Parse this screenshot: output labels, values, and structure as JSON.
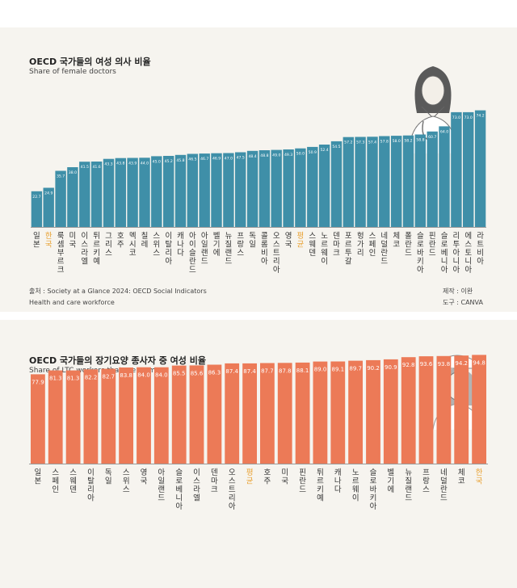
{
  "chart_data": [
    {
      "type": "bar",
      "title": "OECD 국가들의 여성 의사 비율",
      "subtitle": "Share of female doctors",
      "categories": [
        "일본",
        "한국",
        "룩셈부르크",
        "미국",
        "이스라엘",
        "튀르키예",
        "그리스",
        "호주",
        "멕시코",
        "칠레",
        "스위스",
        "이탈리아",
        "캐나다",
        "아이슬란드",
        "아일랜드",
        "벨기에",
        "뉴질랜드",
        "프랑스",
        "독일",
        "콜롬비아",
        "오스트리아",
        "영국",
        "평균",
        "스웨덴",
        "노르웨이",
        "덴마크",
        "포르투갈",
        "헝가리",
        "스페인",
        "네덜란드",
        "체코",
        "폴란드",
        "슬로바키아",
        "핀란드",
        "슬로베니아",
        "리투아니아",
        "에스토니아",
        "라트비아"
      ],
      "values": [
        22.7,
        24.9,
        35.7,
        38.0,
        41.5,
        41.6,
        43.3,
        43.8,
        43.9,
        44.0,
        45.0,
        45.2,
        45.8,
        46.5,
        46.7,
        46.9,
        47.0,
        47.5,
        48.4,
        48.8,
        49.0,
        49.3,
        50.0,
        50.9,
        52.4,
        54.5,
        57.2,
        57.3,
        57.4,
        57.8,
        58.0,
        58.2,
        58.8,
        60.7,
        64.0,
        73.0,
        73.0,
        74.2
      ],
      "highlight": [
        "한국",
        "평균"
      ],
      "ylim": [
        0,
        75
      ],
      "source": "출처 : Society at a Glance 2024: OECD Social Indicators",
      "source2": "Health and care workforce",
      "credit_made": "제작 : 이완",
      "credit_tool": "도구 : CANVA",
      "bar_color": "#3f8fa8",
      "highlight_color": "#e8a030"
    },
    {
      "type": "bar",
      "title": "OECD 국가들의 장기요양 종사자 중 여성 비율",
      "subtitle": "Share of LTC workers that are women",
      "categories": [
        "일본",
        "스페인",
        "스웨덴",
        "이탈리아",
        "독일",
        "스위스",
        "영국",
        "아일랜드",
        "슬로베니아",
        "이스라엘",
        "덴마크",
        "오스트리아",
        "평균",
        "호주",
        "미국",
        "핀란드",
        "튀르키예",
        "캐나다",
        "노르웨이",
        "슬로바키아",
        "벨기에",
        "뉴질랜드",
        "프랑스",
        "네덜란드",
        "체코",
        "한국"
      ],
      "values": [
        77.9,
        81.3,
        81.3,
        82.2,
        82.7,
        83.8,
        84.0,
        84.0,
        85.5,
        85.6,
        86.3,
        87.4,
        87.4,
        87.7,
        87.8,
        88.1,
        89.0,
        89.1,
        89.7,
        90.2,
        90.9,
        92.8,
        93.6,
        93.8,
        94.2,
        94.8
      ],
      "highlight": [
        "한국",
        "평균"
      ],
      "ylim": [
        0,
        100
      ],
      "bar_color": "#ec7a57",
      "highlight_color": "#e8a030"
    }
  ]
}
